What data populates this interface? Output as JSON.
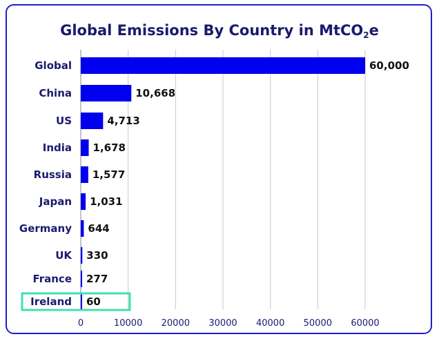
{
  "chart_data": {
    "type": "bar",
    "orientation": "horizontal",
    "title_main": "Global Emissions By Country in MtCO",
    "title_sub": "2",
    "title_end": "e",
    "categories": [
      "Global",
      "China",
      "US",
      "India",
      "Russia",
      "Japan",
      "Germany",
      "UK",
      "France",
      "Ireland"
    ],
    "values": [
      60000,
      10668,
      4713,
      1678,
      1577,
      1031,
      644,
      330,
      277,
      60
    ],
    "value_labels": [
      "60,000",
      "10,668",
      "4,713",
      "1,678",
      "1,577",
      "1,031",
      "644",
      "330",
      "277",
      "60"
    ],
    "xticks": [
      0,
      10000,
      20000,
      30000,
      40000,
      50000,
      60000
    ],
    "xtick_labels": [
      "0",
      "10000",
      "20000",
      "30000",
      "40000",
      "50000",
      "60000"
    ],
    "xlim": [
      0,
      60000
    ],
    "grid": true,
    "highlighted_category": "Ireland",
    "colors": {
      "bar": "#0000ee",
      "highlight_box": "#40e0b0",
      "frame": "#1e1ec8",
      "text": "#1a1a6e",
      "grid": "#c8c8c8"
    }
  }
}
